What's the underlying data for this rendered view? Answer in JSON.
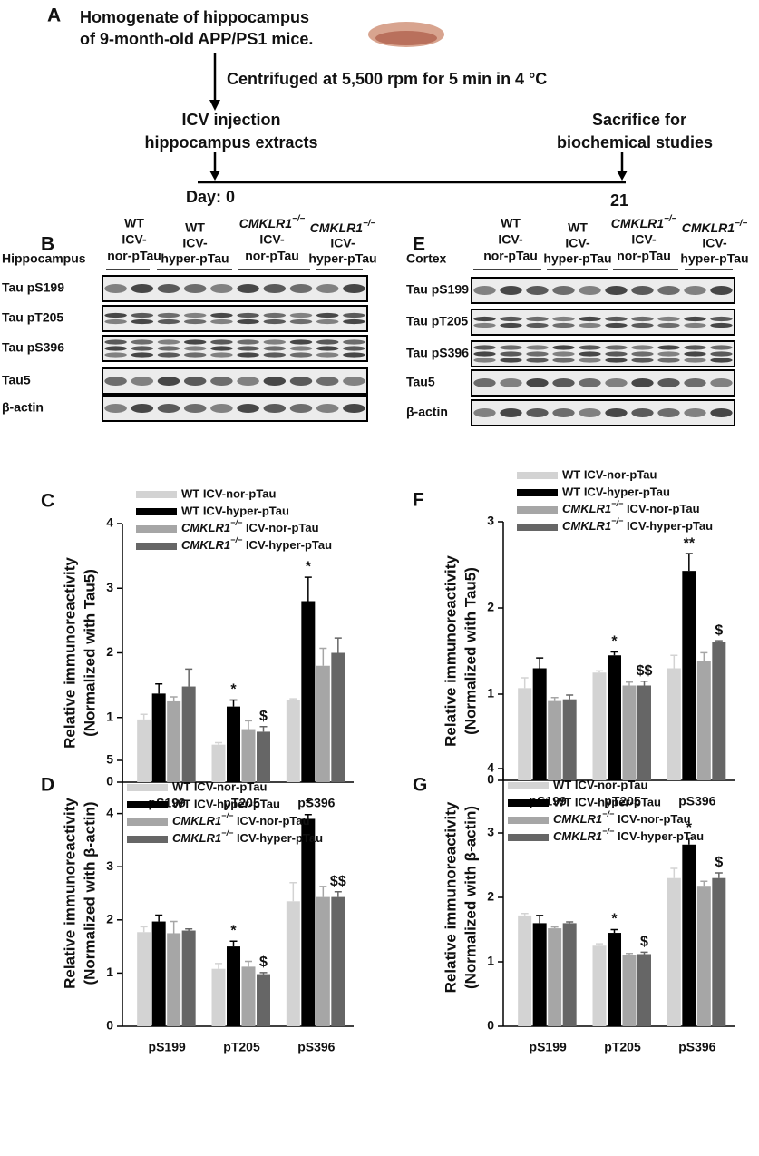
{
  "panel_a": {
    "label": "A",
    "title_lines": [
      "Homogenate of hippocampus",
      "of 9-month-old APP/PS1 mice."
    ],
    "step": "Centrifuged at 5,500 rpm for 5 min in 4 °C",
    "start_lines": [
      "ICV injection",
      "hippocampus extracts"
    ],
    "end_lines": [
      "Sacrifice for",
      "biochemical studies"
    ],
    "start_day": "Day: 0",
    "end_day": "21"
  },
  "blots": [
    {
      "label": "B",
      "tissue": "Hippocampus",
      "groups": [
        [
          "WT",
          "ICV-",
          "nor-pTau"
        ],
        [
          "WT",
          "ICV-",
          "hyper-pTau"
        ],
        [
          "CMKLR1−/−",
          "ICV-",
          "nor-pTau"
        ],
        [
          "CMKLR1−/−",
          "ICV-",
          "hyper-pTau"
        ]
      ],
      "rows": [
        "Tau pS199",
        "Tau pT205",
        "Tau pS396",
        "Tau5",
        "β-actin"
      ]
    },
    {
      "label": "E",
      "tissue": "Cortex",
      "groups": [
        [
          "WT",
          "ICV-",
          "nor-pTau"
        ],
        [
          "WT",
          "ICV-",
          "hyper-pTau"
        ],
        [
          "CMKLR1−/−",
          "ICV-",
          "nor-pTau"
        ],
        [
          "CMKLR1−/−",
          "ICV-",
          "hyper-pTau"
        ]
      ],
      "rows": [
        "Tau pS199",
        "Tau pT205",
        "Tau pS396",
        "Tau5",
        "β-actin"
      ]
    }
  ],
  "chart_data": [
    {
      "type": "bar",
      "panel": "C",
      "ylabel": [
        "Relative immunoreactivity",
        "(Normalized with Tau5)"
      ],
      "categories": [
        "pS199",
        "pT205",
        "pS396"
      ],
      "ylim": [
        0,
        4
      ],
      "yticks": [
        0,
        1,
        2,
        3,
        4
      ],
      "series": [
        {
          "name": "WT ICV-nor-pTau",
          "color": "#d3d3d3",
          "values": [
            0.97,
            0.58,
            1.27
          ],
          "errors": [
            0.08,
            0.03,
            0.02
          ],
          "significance": [
            null,
            null,
            null
          ]
        },
        {
          "name": "WT ICV-hyper-pTau",
          "color": "#000000",
          "values": [
            1.37,
            1.17,
            2.8
          ],
          "errors": [
            0.15,
            0.1,
            0.37
          ],
          "significance": [
            null,
            "*",
            "*"
          ]
        },
        {
          "name": "CMKLR1−/− ICV-nor-pTau",
          "color": "#a6a6a6",
          "values": [
            1.25,
            0.82,
            1.8
          ],
          "errors": [
            0.07,
            0.13,
            0.27
          ],
          "significance": [
            null,
            null,
            null
          ]
        },
        {
          "name": "CMKLR1−/− ICV-hyper-pTau",
          "color": "#666666",
          "values": [
            1.48,
            0.78,
            2.0
          ],
          "errors": [
            0.27,
            0.08,
            0.23
          ],
          "significance": [
            null,
            "$",
            null
          ]
        }
      ]
    },
    {
      "type": "bar",
      "panel": "F",
      "ylabel": [
        "Relative immunoreactivity",
        "(Normalized with Tau5)"
      ],
      "categories": [
        "pS199",
        "pT205",
        "pS396"
      ],
      "ylim": [
        0,
        3
      ],
      "yticks": [
        0,
        1,
        2,
        3
      ],
      "series": [
        {
          "name": "WT ICV-nor-pTau",
          "color": "#d3d3d3",
          "values": [
            1.07,
            1.25,
            1.3
          ],
          "errors": [
            0.12,
            0.02,
            0.15
          ],
          "significance": [
            null,
            null,
            null
          ]
        },
        {
          "name": "WT ICV-hyper-pTau",
          "color": "#000000",
          "values": [
            1.3,
            1.45,
            2.43
          ],
          "errors": [
            0.12,
            0.04,
            0.2
          ],
          "significance": [
            null,
            "*",
            "**"
          ]
        },
        {
          "name": "CMKLR1−/− ICV-nor-pTau",
          "color": "#a6a6a6",
          "values": [
            0.92,
            1.1,
            1.38
          ],
          "errors": [
            0.04,
            0.04,
            0.1
          ],
          "significance": [
            null,
            null,
            null
          ]
        },
        {
          "name": "CMKLR1−/− ICV-hyper-pTau",
          "color": "#666666",
          "values": [
            0.94,
            1.1,
            1.6
          ],
          "errors": [
            0.05,
            0.05,
            0.02
          ],
          "significance": [
            null,
            "$$",
            "$"
          ]
        }
      ]
    },
    {
      "type": "bar",
      "panel": "D",
      "ylabel": [
        "Relative immunoreactivity",
        "(Normalized with β-actin)"
      ],
      "categories": [
        "pS199",
        "pT205",
        "pS396"
      ],
      "ylim": [
        0,
        5
      ],
      "yticks": [
        0,
        1,
        2,
        3,
        4,
        5
      ],
      "series": [
        {
          "name": "WT ICV-nor-pTau",
          "color": "#d3d3d3",
          "values": [
            1.77,
            1.08,
            2.35
          ],
          "errors": [
            0.1,
            0.1,
            0.35
          ],
          "significance": [
            null,
            null,
            null
          ]
        },
        {
          "name": "WT ICV-hyper-pTau",
          "color": "#000000",
          "values": [
            1.97,
            1.5,
            3.9
          ],
          "errors": [
            0.12,
            0.1,
            0.08
          ],
          "significance": [
            null,
            "*",
            "*"
          ]
        },
        {
          "name": "CMKLR1−/− ICV-nor-pTau",
          "color": "#a6a6a6",
          "values": [
            1.75,
            1.12,
            2.43
          ],
          "errors": [
            0.22,
            0.1,
            0.2
          ],
          "significance": [
            null,
            null,
            null
          ]
        },
        {
          "name": "CMKLR1−/− ICV-hyper-pTau",
          "color": "#666666",
          "values": [
            1.8,
            0.98,
            2.43
          ],
          "errors": [
            0.03,
            0.03,
            0.1
          ],
          "significance": [
            null,
            "$",
            "$$"
          ]
        }
      ]
    },
    {
      "type": "bar",
      "panel": "G",
      "ylabel": [
        "Relative immunoreactivity",
        "(Normalized with β-actin)"
      ],
      "categories": [
        "pS199",
        "pT205",
        "pS396"
      ],
      "ylim": [
        0,
        4
      ],
      "yticks": [
        0,
        1,
        2,
        3,
        4
      ],
      "series": [
        {
          "name": "WT ICV-nor-pTau",
          "color": "#d3d3d3",
          "values": [
            1.72,
            1.25,
            2.3
          ],
          "errors": [
            0.03,
            0.03,
            0.15
          ],
          "significance": [
            null,
            null,
            null
          ]
        },
        {
          "name": "WT ICV-hyper-pTau",
          "color": "#000000",
          "values": [
            1.6,
            1.45,
            2.82
          ],
          "errors": [
            0.12,
            0.05,
            0.1
          ],
          "significance": [
            null,
            "*",
            "*"
          ]
        },
        {
          "name": "CMKLR1−/− ICV-nor-pTau",
          "color": "#a6a6a6",
          "values": [
            1.52,
            1.1,
            2.18
          ],
          "errors": [
            0.02,
            0.03,
            0.07
          ],
          "significance": [
            null,
            null,
            null
          ]
        },
        {
          "name": "CMKLR1−/− ICV-hyper-pTau",
          "color": "#666666",
          "values": [
            1.6,
            1.12,
            2.3
          ],
          "errors": [
            0.02,
            0.03,
            0.08
          ],
          "significance": [
            null,
            "$",
            "$"
          ]
        }
      ]
    }
  ]
}
